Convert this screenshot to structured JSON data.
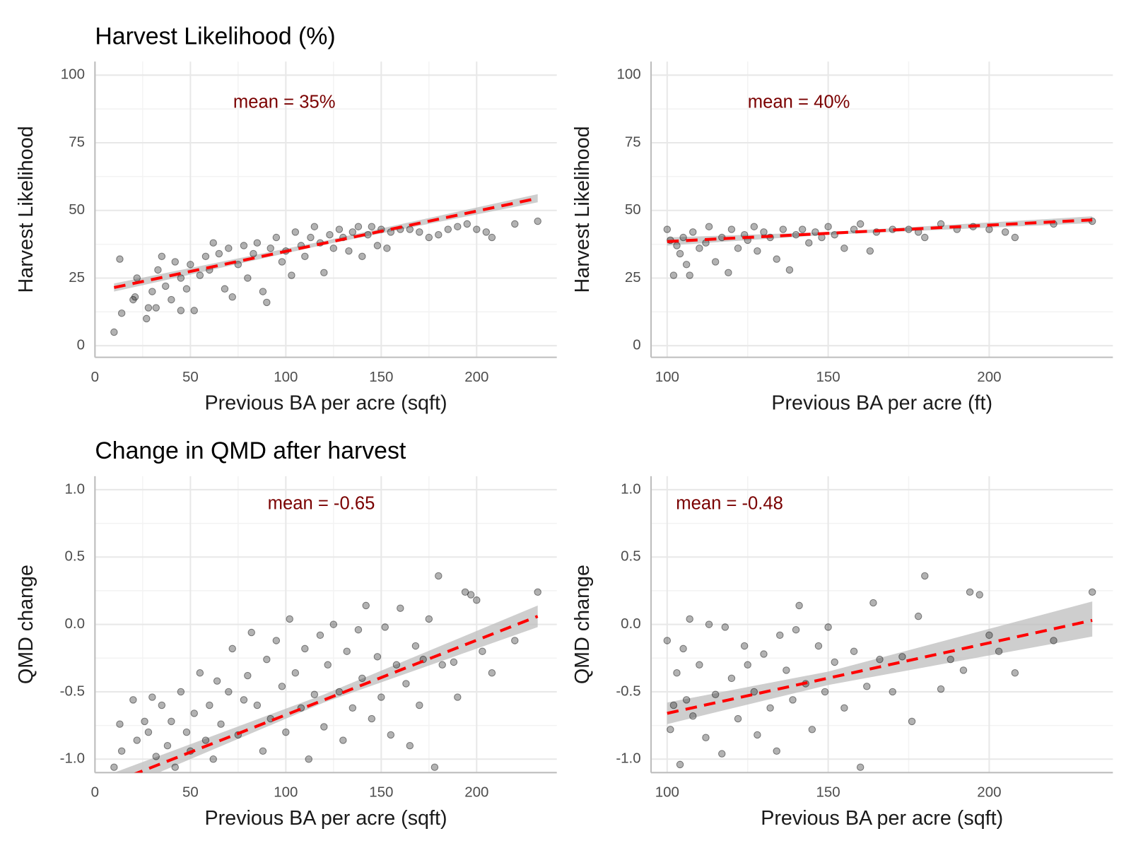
{
  "chart_data": [
    {
      "type": "scatter",
      "title": "Harvest Likelihood (%)",
      "annotation": "mean = 35%",
      "xlabel": "Previous BA per acre (sqft)",
      "ylabel": "Harvest Likelihood",
      "xlim": [
        0,
        242
      ],
      "ylim": [
        -4.3,
        105
      ],
      "xticks": [
        0,
        50,
        100,
        150,
        200
      ],
      "yticks": [
        0,
        25,
        50,
        75,
        100
      ],
      "grid": true,
      "color": "#000000",
      "x": [
        10,
        13,
        14,
        20,
        21,
        22,
        27,
        28,
        30,
        32,
        33,
        35,
        37,
        40,
        42,
        45,
        45,
        48,
        50,
        52,
        55,
        58,
        60,
        62,
        65,
        68,
        70,
        72,
        75,
        78,
        80,
        83,
        85,
        88,
        90,
        92,
        95,
        98,
        100,
        103,
        105,
        108,
        110,
        113,
        115,
        118,
        120,
        123,
        125,
        128,
        130,
        133,
        135,
        138,
        140,
        143,
        145,
        148,
        150,
        153,
        155,
        160,
        165,
        170,
        175,
        180,
        185,
        190,
        195,
        200,
        205,
        208,
        220,
        232
      ],
      "y": [
        5,
        32,
        12,
        17,
        18,
        25,
        10,
        14,
        20,
        14,
        28,
        33,
        22,
        17,
        31,
        25,
        13,
        21,
        30,
        13,
        26,
        33,
        28,
        38,
        34,
        21,
        36,
        18,
        30,
        37,
        25,
        34,
        38,
        20,
        16,
        36,
        40,
        31,
        35,
        26,
        42,
        37,
        33,
        40,
        44,
        38,
        27,
        41,
        36,
        43,
        40,
        35,
        42,
        44,
        33,
        41,
        44,
        37,
        43,
        36,
        42,
        43,
        43,
        42,
        40,
        41,
        43,
        44,
        45,
        43,
        42,
        40,
        45,
        46
      ],
      "trend": {
        "color": "#ff0000",
        "x": [
          10,
          232
        ],
        "y": [
          21.5,
          54.5
        ]
      },
      "band": {
        "color": "#bebebe",
        "x": [
          10,
          120,
          232
        ],
        "lower": [
          20,
          37.3,
          53
        ],
        "upper": [
          23,
          38.7,
          56
        ]
      }
    },
    {
      "type": "scatter",
      "annotation": "mean = 40%",
      "xlabel": "Previous BA per acre (ft)",
      "ylabel": "Harvest Likelihood",
      "xlim": [
        95,
        238.4
      ],
      "ylim": [
        -4.3,
        105
      ],
      "xticks": [
        100,
        150,
        200
      ],
      "yticks": [
        0,
        25,
        50,
        75,
        100
      ],
      "grid": true,
      "color": "#000000",
      "x": [
        100,
        101,
        102,
        103,
        104,
        105,
        106,
        107,
        108,
        110,
        112,
        113,
        115,
        117,
        119,
        120,
        122,
        124,
        125,
        127,
        128,
        130,
        132,
        134,
        136,
        138,
        140,
        142,
        144,
        146,
        148,
        150,
        152,
        155,
        158,
        160,
        163,
        165,
        170,
        175,
        178,
        180,
        185,
        190,
        195,
        200,
        205,
        208,
        220,
        232
      ],
      "y": [
        43,
        39,
        26,
        37,
        34,
        40,
        30,
        26,
        42,
        36,
        38,
        44,
        31,
        40,
        27,
        43,
        36,
        41,
        39,
        44,
        35,
        42,
        40,
        32,
        43,
        28,
        41,
        43,
        38,
        42,
        40,
        44,
        41,
        36,
        43,
        45,
        35,
        42,
        43,
        43,
        42,
        40,
        45,
        43,
        44,
        43,
        42,
        40,
        45,
        46
      ],
      "trend": {
        "color": "#ff0000",
        "x": [
          100,
          232
        ],
        "y": [
          38.5,
          46.5
        ]
      },
      "band": {
        "color": "#bebebe",
        "x": [
          100,
          150,
          232
        ],
        "lower": [
          37,
          41,
          45.3
        ],
        "upper": [
          40,
          42,
          47.8
        ]
      }
    },
    {
      "type": "scatter",
      "title": "Change in QMD after harvest",
      "annotation": "mean = -0.65",
      "xlabel": "Previous BA per acre (sqft)",
      "ylabel": "QMD change",
      "xlim": [
        0,
        242
      ],
      "ylim": [
        -1.1,
        1.1
      ],
      "xticks": [
        0,
        50,
        100,
        150,
        200
      ],
      "yticks": [
        {
          "value": 1,
          "label": "1.0"
        },
        {
          "value": 0.5,
          "label": "0.5"
        },
        {
          "value": 0,
          "label": "0.0"
        },
        {
          "value": -0.5,
          "label": "-0.5"
        },
        {
          "value": -1,
          "label": "-1.0"
        }
      ],
      "grid": true,
      "color": "#000000",
      "x": [
        10,
        13,
        14,
        20,
        22,
        26,
        28,
        30,
        32,
        35,
        38,
        40,
        42,
        45,
        48,
        50,
        52,
        55,
        58,
        60,
        62,
        64,
        66,
        70,
        72,
        75,
        78,
        80,
        82,
        85,
        88,
        90,
        92,
        95,
        98,
        100,
        102,
        105,
        108,
        110,
        112,
        115,
        118,
        120,
        122,
        125,
        128,
        130,
        132,
        135,
        138,
        140,
        142,
        145,
        148,
        150,
        152,
        155,
        158,
        160,
        163,
        165,
        168,
        170,
        172,
        175,
        178,
        180,
        182,
        188,
        190,
        194,
        197,
        200,
        203,
        208,
        220,
        232
      ],
      "y": [
        -1.06,
        -0.74,
        -0.94,
        -0.56,
        -0.86,
        -0.72,
        -0.8,
        -0.54,
        -0.98,
        -0.6,
        -0.9,
        -0.72,
        -1.06,
        -0.5,
        -0.8,
        -0.94,
        -0.66,
        -0.36,
        -0.86,
        -0.6,
        -1.0,
        -0.42,
        -0.74,
        -0.5,
        -0.18,
        -0.82,
        -0.56,
        -0.38,
        -0.06,
        -0.6,
        -0.94,
        -0.26,
        -0.7,
        -0.12,
        -0.46,
        -0.8,
        0.04,
        -0.36,
        -0.62,
        -0.18,
        -1.0,
        -0.52,
        -0.08,
        -0.76,
        -0.3,
        0.0,
        -0.5,
        -0.86,
        -0.2,
        -0.62,
        -0.04,
        -0.4,
        0.14,
        -0.7,
        -0.24,
        -0.54,
        -0.02,
        -0.82,
        -0.3,
        0.12,
        -0.44,
        -0.9,
        -0.16,
        -0.6,
        -0.26,
        0.04,
        -1.06,
        0.36,
        -0.3,
        -0.28,
        -0.54,
        0.24,
        0.22,
        0.18,
        -0.2,
        -0.36,
        -0.12,
        0.24
      ],
      "trend": {
        "color": "#ff0000",
        "x": [
          10,
          232
        ],
        "y": [
          -1.17,
          0.06
        ]
      },
      "band": {
        "color": "#bebebe",
        "x": [
          10,
          120,
          232
        ],
        "lower": [
          -1.24,
          -0.58,
          -0.02
        ],
        "upper": [
          -1.1,
          -0.52,
          0.14
        ]
      }
    },
    {
      "type": "scatter",
      "annotation": "mean = -0.48",
      "xlabel": "Previous BA per acre (sqft)",
      "ylabel": "QMD change",
      "xlim": [
        95,
        238.4
      ],
      "ylim": [
        -1.1,
        1.1
      ],
      "xticks": [
        100,
        150,
        200
      ],
      "yticks": [
        {
          "value": 1,
          "label": "1.0"
        },
        {
          "value": 0.5,
          "label": "0.5"
        },
        {
          "value": 0,
          "label": "0.0"
        },
        {
          "value": -0.5,
          "label": "-0.5"
        },
        {
          "value": -1,
          "label": "-1.0"
        }
      ],
      "grid": true,
      "color": "#000000",
      "x": [
        100,
        101,
        102,
        103,
        104,
        105,
        106,
        107,
        108,
        110,
        112,
        113,
        115,
        117,
        118,
        120,
        122,
        124,
        125,
        127,
        128,
        130,
        132,
        134,
        135,
        137,
        139,
        140,
        141,
        143,
        145,
        147,
        149,
        150,
        152,
        155,
        158,
        160,
        162,
        164,
        166,
        170,
        173,
        176,
        178,
        180,
        185,
        188,
        192,
        194,
        197,
        200,
        203,
        208,
        220,
        232
      ],
      "y": [
        -0.12,
        -0.78,
        -0.6,
        -0.36,
        -1.04,
        -0.18,
        -0.56,
        0.04,
        -0.68,
        -0.3,
        -0.84,
        0.0,
        -0.52,
        -0.96,
        -0.02,
        -0.4,
        -0.7,
        -0.16,
        -0.3,
        -0.5,
        -0.82,
        -0.22,
        -0.62,
        -0.94,
        -0.08,
        -0.34,
        -0.56,
        -0.04,
        0.14,
        -0.44,
        -0.78,
        -0.16,
        -0.5,
        -0.02,
        -0.28,
        -0.62,
        -0.2,
        -1.06,
        -0.46,
        0.16,
        -0.26,
        -0.5,
        -0.24,
        -0.72,
        0.06,
        0.36,
        -0.48,
        -0.26,
        -0.34,
        0.24,
        0.22,
        -0.08,
        -0.2,
        -0.36,
        -0.12,
        0.24
      ],
      "trend": {
        "color": "#ff0000",
        "x": [
          100,
          232
        ],
        "y": [
          -0.66,
          0.03
        ]
      },
      "band": {
        "color": "#bebebe",
        "x": [
          100,
          150,
          232
        ],
        "lower": [
          -0.74,
          -0.45,
          -0.09
        ],
        "upper": [
          -0.58,
          -0.35,
          0.17
        ]
      }
    }
  ]
}
